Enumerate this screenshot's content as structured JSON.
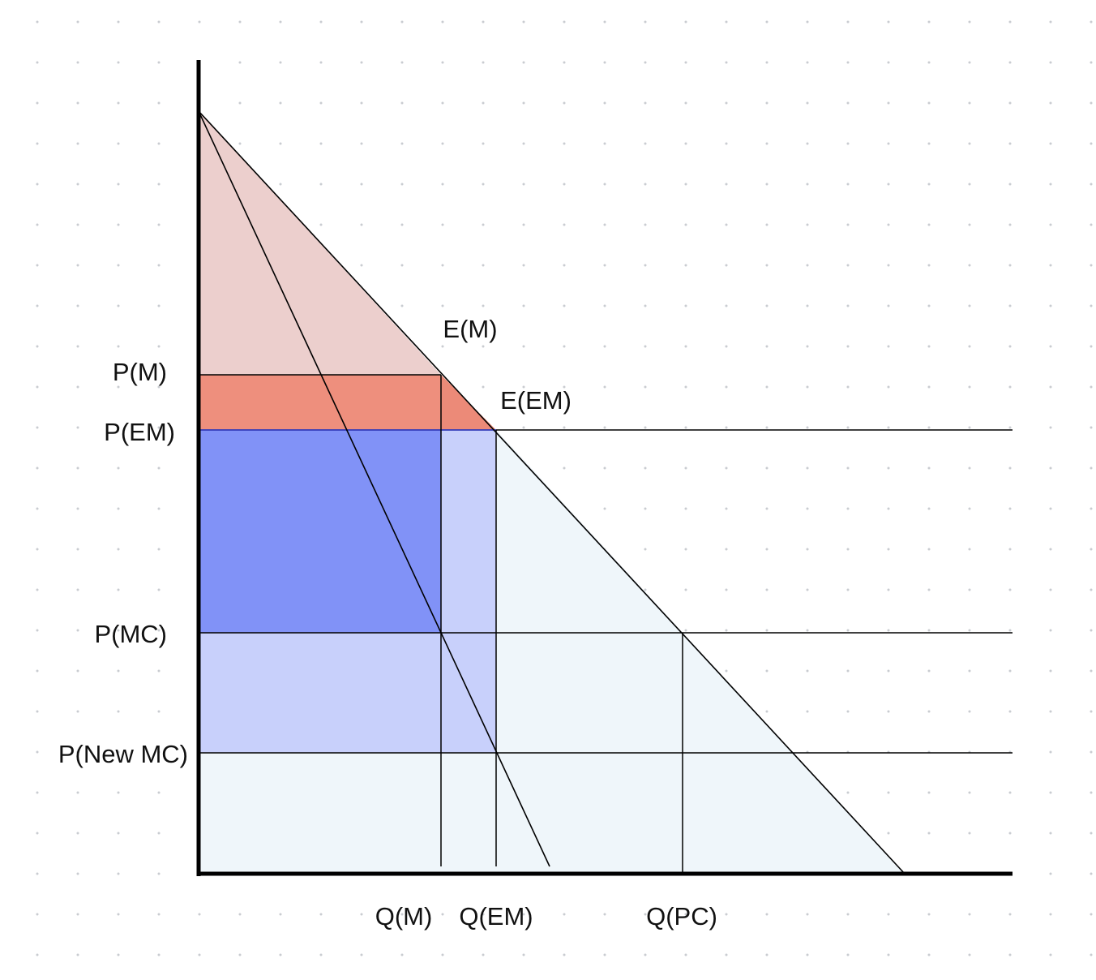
{
  "colors": {
    "background": "#ffffff",
    "grid_dot": "#c9ccd1",
    "line": "#000000",
    "consumer_surplus": "#e9bcb8",
    "deadweight_loss": "#ec8a78",
    "producer_surplus_dark": "#8192f7",
    "producer_surplus_light": "#c8d0fb",
    "baseline_region": "#eff6fa"
  },
  "labels": {
    "p_m": "P(M)",
    "p_em": "P(EM)",
    "p_mc": "P(MC)",
    "p_new_mc": "P(New MC)",
    "q_m": "Q(M)",
    "q_em": "Q(EM)",
    "q_pc": "Q(PC)",
    "e_m": "E(M)",
    "e_em": "E(EM)"
  }
}
